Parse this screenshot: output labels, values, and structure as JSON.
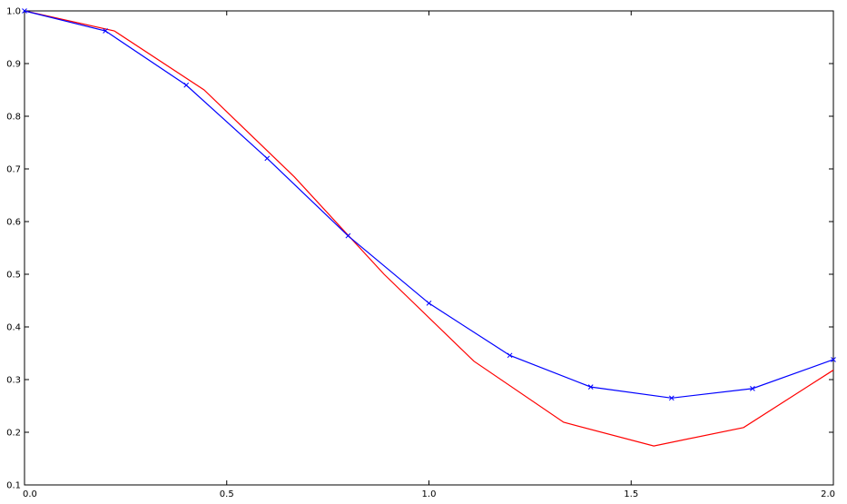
{
  "chart_data": {
    "type": "line",
    "title": "",
    "xlabel": "",
    "ylabel": "",
    "xlim": [
      0.0,
      2.0
    ],
    "ylim": [
      0.1,
      1.0
    ],
    "grid": false,
    "x_ticks": [
      0.0,
      0.5,
      1.0,
      1.5,
      2.0
    ],
    "x_tick_labels": [
      "0.0",
      "0.5",
      "1.0",
      "1.5",
      "2.0"
    ],
    "y_ticks": [
      0.1,
      0.2,
      0.3,
      0.4,
      0.5,
      0.6,
      0.7,
      0.8,
      0.9,
      1.0
    ],
    "y_tick_labels": [
      "0.1",
      "0.2",
      "0.3",
      "0.4",
      "0.5",
      "0.6",
      "0.7",
      "0.8",
      "0.9",
      "1.0"
    ],
    "series": [
      {
        "color": "#ff0000",
        "marker": "none",
        "x": [
          0.0,
          0.222,
          0.444,
          0.667,
          0.889,
          1.111,
          1.333,
          1.556,
          1.778,
          2.0
        ],
        "y": [
          1.0,
          0.962,
          0.85,
          0.685,
          0.5,
          0.335,
          0.219,
          0.174,
          0.209,
          0.318
        ]
      },
      {
        "color": "#0000ff",
        "marker": "x",
        "x": [
          0.0,
          0.2,
          0.4,
          0.6,
          0.8,
          1.0,
          1.2,
          1.4,
          1.6,
          1.8,
          2.0
        ],
        "y": [
          1.0,
          0.962,
          0.859,
          0.72,
          0.573,
          0.445,
          0.346,
          0.286,
          0.265,
          0.283,
          0.338
        ]
      }
    ]
  }
}
